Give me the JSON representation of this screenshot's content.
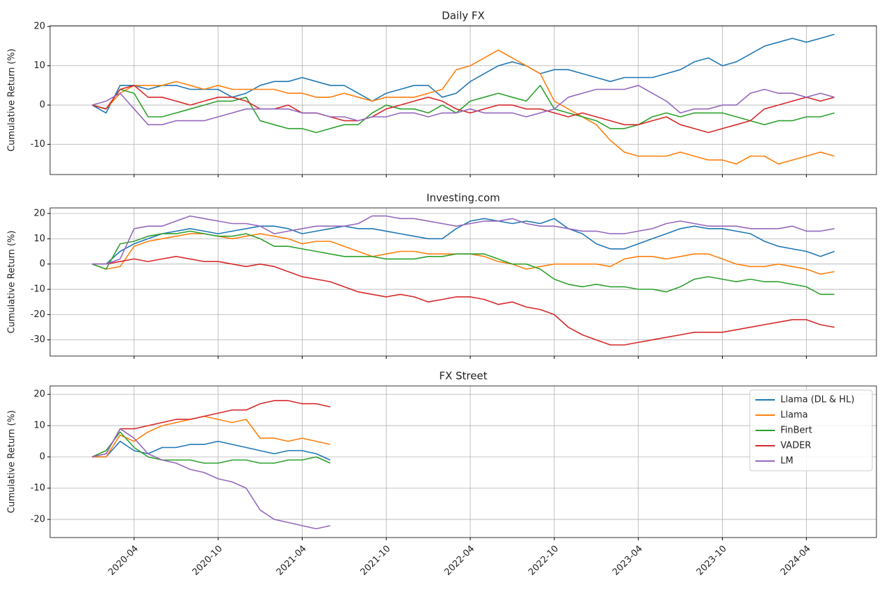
{
  "chart_data": [
    {
      "type": "line",
      "title": "Daily FX",
      "y_label": "Cumulative Return (%)",
      "x": [
        "2020-01",
        "2020-02",
        "2020-03",
        "2020-04",
        "2020-05",
        "2020-06",
        "2020-07",
        "2020-08",
        "2020-09",
        "2020-10",
        "2020-11",
        "2020-12",
        "2021-01",
        "2021-02",
        "2021-03",
        "2021-04",
        "2021-05",
        "2021-06",
        "2021-07",
        "2021-08",
        "2021-09",
        "2021-10",
        "2021-11",
        "2021-12",
        "2022-01",
        "2022-02",
        "2022-03",
        "2022-04",
        "2022-05",
        "2022-06",
        "2022-07",
        "2022-08",
        "2022-09",
        "2022-10",
        "2022-11",
        "2022-12",
        "2023-01",
        "2023-02",
        "2023-03",
        "2023-04",
        "2023-05",
        "2023-06",
        "2023-07",
        "2023-08",
        "2023-09",
        "2023-10",
        "2023-11",
        "2023-12",
        "2024-01",
        "2024-02",
        "2024-03",
        "2024-04",
        "2024-05",
        "2024-06"
      ],
      "series": [
        {
          "name": "Llama (DL & HL)",
          "color": "#1f77b4",
          "values": [
            0,
            -2,
            5,
            5,
            4,
            5,
            5,
            4,
            4,
            4,
            2,
            3,
            5,
            6,
            6,
            7,
            6,
            5,
            5,
            3,
            1,
            3,
            4,
            5,
            5,
            2,
            3,
            6,
            8,
            10,
            11,
            10,
            8,
            9,
            9,
            8,
            7,
            6,
            7,
            7,
            7,
            8,
            9,
            11,
            12,
            10,
            11,
            13,
            15,
            16,
            17,
            16,
            17,
            18
          ]
        },
        {
          "name": "Llama",
          "color": "#ff7f0e",
          "values": [
            0,
            -1,
            3,
            5,
            5,
            5,
            6,
            5,
            4,
            5,
            4,
            4,
            4,
            4,
            3,
            3,
            2,
            2,
            3,
            2,
            1,
            2,
            2,
            2,
            3,
            4,
            9,
            10,
            12,
            14,
            12,
            10,
            8,
            1,
            -1,
            -3,
            -5,
            -9,
            -12,
            -13,
            -13,
            -13,
            -12,
            -13,
            -14,
            -14,
            -15,
            -13,
            -13,
            -15,
            -14,
            -13,
            -12,
            -13
          ]
        },
        {
          "name": "FinBert",
          "color": "#2ca02c",
          "values": [
            0,
            -1,
            4,
            3,
            -3,
            -3,
            -2,
            -1,
            0,
            1,
            1,
            2,
            -4,
            -5,
            -6,
            -6,
            -7,
            -6,
            -5,
            -5,
            -2,
            0,
            -1,
            -1,
            -2,
            0,
            -2,
            1,
            2,
            3,
            2,
            1,
            5,
            -1,
            -2,
            -3,
            -4,
            -6,
            -6,
            -5,
            -3,
            -2,
            -3,
            -2,
            -2,
            -2,
            -3,
            -4,
            -5,
            -4,
            -4,
            -3,
            -3,
            -2
          ]
        },
        {
          "name": "VADER",
          "color": "#d62728",
          "values": [
            0,
            -1,
            4,
            5,
            2,
            2,
            1,
            0,
            1,
            2,
            2,
            1,
            -1,
            -1,
            0,
            -2,
            -2,
            -3,
            -4,
            -4,
            -3,
            -1,
            0,
            1,
            2,
            1,
            -1,
            -2,
            -1,
            0,
            0,
            -1,
            -1,
            -2,
            -3,
            -2,
            -3,
            -4,
            -5,
            -5,
            -4,
            -3,
            -5,
            -6,
            -7,
            -6,
            -5,
            -4,
            -1,
            0,
            1,
            2,
            1,
            2
          ]
        },
        {
          "name": "LM",
          "color": "#9467bd",
          "values": [
            0,
            1,
            3,
            -1,
            -5,
            -5,
            -4,
            -4,
            -4,
            -3,
            -2,
            -1,
            -1,
            -1,
            -1,
            -2,
            -2,
            -3,
            -3,
            -4,
            -3,
            -3,
            -2,
            -2,
            -3,
            -2,
            -2,
            -1,
            -2,
            -2,
            -2,
            -3,
            -2,
            -1,
            2,
            3,
            4,
            4,
            4,
            5,
            3,
            1,
            -2,
            -1,
            -1,
            0,
            0,
            3,
            4,
            3,
            3,
            2,
            3,
            2
          ]
        }
      ],
      "xlim": [
        "2019-10",
        "2024-09"
      ],
      "ylim": [
        -17.7,
        20.2
      ],
      "yticks": [
        -10,
        0,
        10,
        20
      ],
      "grid": true
    },
    {
      "type": "line",
      "title": "Investing.com",
      "y_label": "Cumulative Return (%)",
      "x": [
        "2020-01",
        "2020-02",
        "2020-03",
        "2020-04",
        "2020-05",
        "2020-06",
        "2020-07",
        "2020-08",
        "2020-09",
        "2020-10",
        "2020-11",
        "2020-12",
        "2021-01",
        "2021-02",
        "2021-03",
        "2021-04",
        "2021-05",
        "2021-06",
        "2021-07",
        "2021-08",
        "2021-09",
        "2021-10",
        "2021-11",
        "2021-12",
        "2022-01",
        "2022-02",
        "2022-03",
        "2022-04",
        "2022-05",
        "2022-06",
        "2022-07",
        "2022-08",
        "2022-09",
        "2022-10",
        "2022-11",
        "2022-12",
        "2023-01",
        "2023-02",
        "2023-03",
        "2023-04",
        "2023-05",
        "2023-06",
        "2023-07",
        "2023-08",
        "2023-09",
        "2023-10",
        "2023-11",
        "2023-12",
        "2024-01",
        "2024-02",
        "2024-03",
        "2024-04",
        "2024-05",
        "2024-06"
      ],
      "series": [
        {
          "name": "Llama (DL & HL)",
          "color": "#1f77b4",
          "values": [
            0,
            0,
            5,
            8,
            10,
            12,
            13,
            14,
            13,
            12,
            13,
            14,
            15,
            15,
            14,
            12,
            13,
            14,
            15,
            14,
            14,
            13,
            12,
            11,
            10,
            10,
            14,
            17,
            18,
            17,
            16,
            17,
            16,
            18,
            14,
            12,
            8,
            6,
            6,
            8,
            10,
            12,
            14,
            15,
            14,
            14,
            13,
            12,
            9,
            7,
            6,
            5,
            3,
            5
          ]
        },
        {
          "name": "Llama",
          "color": "#ff7f0e",
          "values": [
            0,
            -2,
            -1,
            7,
            9,
            10,
            11,
            12,
            12,
            11,
            10,
            11,
            12,
            11,
            10,
            8,
            9,
            9,
            7,
            5,
            3,
            4,
            5,
            5,
            4,
            4,
            4,
            4,
            3,
            1,
            0,
            -2,
            -1,
            0,
            0,
            0,
            0,
            -1,
            2,
            3,
            3,
            2,
            3,
            4,
            4,
            2,
            0,
            -1,
            -1,
            0,
            -1,
            -2,
            -4,
            -3
          ]
        },
        {
          "name": "FinBert",
          "color": "#2ca02c",
          "values": [
            0,
            -2,
            8,
            9,
            11,
            12,
            12,
            13,
            12,
            11,
            11,
            12,
            10,
            7,
            7,
            6,
            5,
            4,
            3,
            3,
            3,
            2,
            2,
            2,
            3,
            3,
            4,
            4,
            4,
            2,
            0,
            0,
            -2,
            -6,
            -8,
            -9,
            -8,
            -9,
            -9,
            -10,
            -10,
            -11,
            -9,
            -6,
            -5,
            -6,
            -7,
            -6,
            -7,
            -7,
            -8,
            -9,
            -12,
            -12
          ]
        },
        {
          "name": "VADER",
          "color": "#d62728",
          "values": [
            0,
            0,
            1,
            2,
            1,
            2,
            3,
            2,
            1,
            1,
            0,
            -1,
            0,
            -1,
            -3,
            -5,
            -6,
            -7,
            -9,
            -11,
            -12,
            -13,
            -12,
            -13,
            -15,
            -14,
            -13,
            -13,
            -14,
            -16,
            -15,
            -17,
            -18,
            -20,
            -25,
            -28,
            -30,
            -32,
            -32,
            -31,
            -30,
            -29,
            -28,
            -27,
            -27,
            -27,
            -26,
            -25,
            -24,
            -23,
            -22,
            -22,
            -24,
            -25
          ]
        },
        {
          "name": "LM",
          "color": "#9467bd",
          "values": [
            0,
            0,
            2,
            14,
            15,
            15,
            17,
            19,
            18,
            17,
            16,
            16,
            15,
            12,
            13,
            14,
            15,
            15,
            15,
            16,
            19,
            19,
            18,
            18,
            17,
            16,
            15,
            16,
            17,
            17,
            18,
            16,
            15,
            15,
            14,
            13,
            13,
            12,
            12,
            13,
            14,
            16,
            17,
            16,
            15,
            15,
            15,
            14,
            14,
            14,
            15,
            13,
            13,
            14
          ]
        }
      ],
      "xlim": [
        "2019-10",
        "2024-09"
      ],
      "ylim": [
        -36.4,
        22.2
      ],
      "yticks": [
        -30,
        -20,
        -10,
        0,
        10,
        20
      ],
      "grid": true
    },
    {
      "type": "line",
      "title": "FX Street",
      "y_label": "Cumulative Return (%)",
      "x": [
        "2020-01",
        "2020-02",
        "2020-03",
        "2020-04",
        "2020-05",
        "2020-06",
        "2020-07",
        "2020-08",
        "2020-09",
        "2020-10",
        "2020-11",
        "2020-12",
        "2021-01",
        "2021-02",
        "2021-03",
        "2021-04",
        "2021-05",
        "2021-06"
      ],
      "series": [
        {
          "name": "Llama (DL & HL)",
          "color": "#1f77b4",
          "values": [
            0,
            0,
            5,
            2,
            1,
            3,
            3,
            4,
            4,
            5,
            4,
            3,
            2,
            1,
            2,
            2,
            1,
            -1
          ]
        },
        {
          "name": "Llama",
          "color": "#ff7f0e",
          "values": [
            0,
            0,
            7,
            5,
            8,
            10,
            11,
            12,
            13,
            12,
            11,
            12,
            6,
            6,
            5,
            6,
            5,
            4
          ]
        },
        {
          "name": "FinBert",
          "color": "#2ca02c",
          "values": [
            0,
            2,
            8,
            3,
            0,
            -1,
            -1,
            -1,
            -2,
            -2,
            -1,
            -1,
            -2,
            -2,
            -1,
            -1,
            0,
            -2
          ]
        },
        {
          "name": "VADER",
          "color": "#d62728",
          "values": [
            0,
            1,
            9,
            9,
            10,
            11,
            12,
            12,
            13,
            14,
            15,
            15,
            17,
            18,
            18,
            17,
            17,
            16
          ]
        },
        {
          "name": "LM",
          "color": "#9467bd",
          "values": [
            0,
            1,
            9,
            6,
            1,
            -1,
            -2,
            -4,
            -5,
            -7,
            -8,
            -10,
            -17,
            -20,
            -21,
            -22,
            -23,
            -22
          ]
        }
      ],
      "xlim": [
        "2019-10",
        "2024-09"
      ],
      "ylim": [
        -25.8,
        22.7
      ],
      "yticks": [
        -20,
        -10,
        0,
        10,
        20
      ],
      "xticks": [
        "2020-04",
        "2020-10",
        "2021-04",
        "2021-10",
        "2022-04",
        "2022-10",
        "2023-04",
        "2023-10",
        "2024-04"
      ],
      "grid": true,
      "legend": "upper right"
    }
  ]
}
